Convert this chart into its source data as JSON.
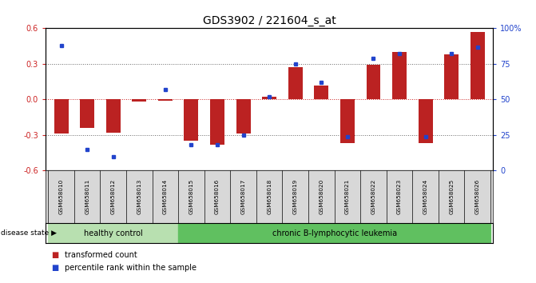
{
  "title": "GDS3902 / 221604_s_at",
  "samples": [
    "GSM658010",
    "GSM658011",
    "GSM658012",
    "GSM658013",
    "GSM658014",
    "GSM658015",
    "GSM658016",
    "GSM658017",
    "GSM658018",
    "GSM658019",
    "GSM658020",
    "GSM658021",
    "GSM658022",
    "GSM658023",
    "GSM658024",
    "GSM658025",
    "GSM658026"
  ],
  "red_bars": [
    -0.29,
    -0.24,
    -0.28,
    -0.02,
    -0.01,
    -0.35,
    -0.38,
    -0.29,
    0.02,
    0.27,
    0.12,
    -0.37,
    0.29,
    0.4,
    -0.37,
    0.38,
    0.57
  ],
  "percentile_values": [
    88,
    15,
    10,
    null,
    57,
    18,
    18,
    25,
    52,
    75,
    62,
    24,
    79,
    82,
    24,
    82,
    87
  ],
  "group1_count": 5,
  "group1_label": "healthy control",
  "group2_label": "chronic B-lymphocytic leukemia",
  "group1_color": "#b8e0b0",
  "group2_color": "#60c060",
  "bar_color": "#bb2222",
  "dot_color": "#2244cc",
  "ylim_left": [
    -0.6,
    0.6
  ],
  "ylim_right": [
    0,
    100
  ],
  "yticks_left": [
    -0.6,
    -0.3,
    0.0,
    0.3,
    0.6
  ],
  "yticks_right": [
    0,
    25,
    50,
    75,
    100
  ],
  "yticklabels_right": [
    "0",
    "25",
    "50",
    "75",
    "100%"
  ],
  "hlines_dotted": [
    0.3,
    -0.3
  ],
  "hline_red": 0.0,
  "legend_red": "transformed count",
  "legend_blue": "percentile rank within the sample",
  "disease_state_label": "disease state",
  "background_color": "#ffffff",
  "title_fontsize": 10,
  "tick_fontsize": 7,
  "label_strip_color": "#d8d8d8"
}
